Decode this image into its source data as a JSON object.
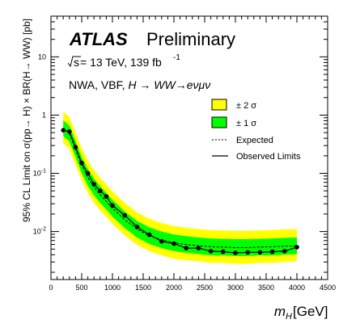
{
  "chart_data": {
    "type": "line",
    "title": "ATLAS",
    "subtitle": "Preliminary",
    "energy_prefix": "s",
    "energy_text": " = 13 TeV, 139 fb",
    "lumi_exponent": "-1",
    "model_prefix": "NWA, VBF, ",
    "model_H": "H",
    "model_arrow": " → ",
    "model_WW": "WW",
    "model_decay": "→eνμν",
    "ylabel": "95% CL Limit on σ(pp→ H) × BR(H→ WW) [pb]",
    "xlabel_var": "m",
    "xlabel_sub": "H",
    "xlabel_unit": " [GeV]",
    "xlim": [
      0,
      4500
    ],
    "ylim": [
      0.0015,
      50
    ],
    "yscale": "log",
    "x_ticks": [
      "0",
      "500",
      "1000",
      "1500",
      "2000",
      "2500",
      "3000",
      "3500",
      "4000",
      "4500"
    ],
    "y_ticks": [
      {
        "mant": "10",
        "exp": "-2",
        "value": 0.01
      },
      {
        "mant": "10",
        "exp": "-1",
        "value": 0.1
      },
      {
        "mant": "1",
        "exp": "",
        "value": 1
      },
      {
        "mant": "10",
        "exp": "",
        "value": 10
      }
    ],
    "legend": {
      "position": "top-right",
      "band2": "± 2 σ",
      "band1": "± 1 σ",
      "expected": "Expected",
      "observed": "Observed Limits"
    },
    "colors": {
      "band2": "#ffff00",
      "band1": "#00ff00",
      "line": "#000000"
    },
    "x": [
      200,
      300,
      400,
      500,
      600,
      700,
      800,
      900,
      1000,
      1200,
      1400,
      1600,
      1800,
      2000,
      2200,
      2400,
      2600,
      2800,
      3000,
      3200,
      3400,
      3600,
      3800,
      4000
    ],
    "observed": [
      0.55,
      0.52,
      0.28,
      0.15,
      0.1,
      0.065,
      0.05,
      0.04,
      0.028,
      0.019,
      0.012,
      0.0088,
      0.0068,
      0.0062,
      0.0052,
      0.0052,
      0.0046,
      0.0045,
      0.0043,
      0.0044,
      0.0044,
      0.0045,
      0.0046,
      0.0054
    ],
    "expected": [
      0.6,
      0.48,
      0.26,
      0.14,
      0.085,
      0.058,
      0.043,
      0.033,
      0.025,
      0.016,
      0.011,
      0.0085,
      0.0072,
      0.0064,
      0.006,
      0.0057,
      0.0055,
      0.0054,
      0.0053,
      0.0053,
      0.0054,
      0.0055,
      0.0056,
      0.0057
    ],
    "band1_low": [
      0.44,
      0.35,
      0.19,
      0.1,
      0.061,
      0.042,
      0.031,
      0.024,
      0.018,
      0.0115,
      0.0079,
      0.0061,
      0.0052,
      0.0046,
      0.0043,
      0.0041,
      0.0039,
      0.0039,
      0.0038,
      0.0038,
      0.0039,
      0.0039,
      0.004,
      0.0041
    ],
    "band1_high": [
      0.82,
      0.66,
      0.36,
      0.19,
      0.118,
      0.081,
      0.06,
      0.046,
      0.035,
      0.022,
      0.0152,
      0.0118,
      0.01,
      0.0089,
      0.0083,
      0.0079,
      0.0076,
      0.0075,
      0.0074,
      0.0074,
      0.0075,
      0.0076,
      0.0078,
      0.0079
    ],
    "band2_low": [
      0.33,
      0.26,
      0.14,
      0.076,
      0.046,
      0.031,
      0.023,
      0.018,
      0.0135,
      0.0086,
      0.0059,
      0.0046,
      0.0039,
      0.0034,
      0.0032,
      0.0031,
      0.0029,
      0.0029,
      0.0028,
      0.0028,
      0.0029,
      0.0029,
      0.003,
      0.0031
    ],
    "band2_high": [
      1.15,
      0.92,
      0.5,
      0.27,
      0.165,
      0.113,
      0.084,
      0.064,
      0.049,
      0.031,
      0.0213,
      0.0165,
      0.014,
      0.0124,
      0.0116,
      0.011,
      0.0106,
      0.0105,
      0.0103,
      0.0103,
      0.0105,
      0.0106,
      0.0109,
      0.011
    ]
  }
}
